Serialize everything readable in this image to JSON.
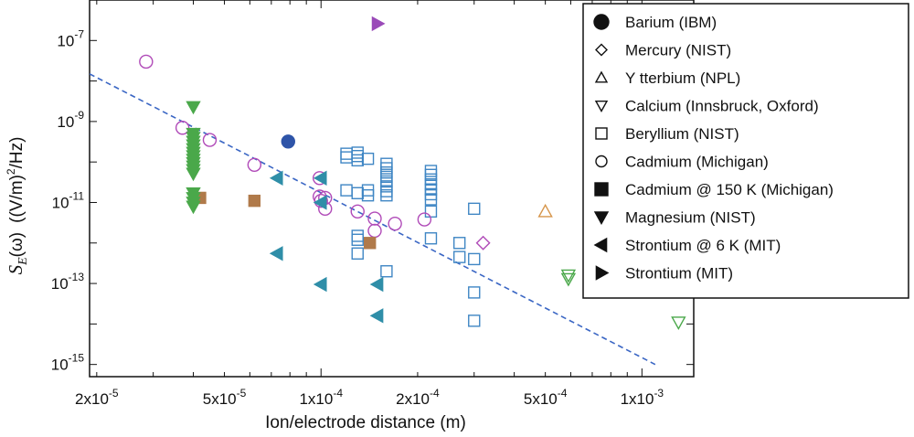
{
  "chart_data": {
    "type": "scatter",
    "title": "",
    "xlabel": "Ion/electrode distance (m)",
    "ylabel": "S_E(ω) ((V/m)²/Hz)",
    "ylabel_parts": {
      "s": "S",
      "sub": "E",
      "omega": "(ω)",
      "units_a": "((V/m)",
      "units_sup": "2",
      "units_b": "/Hz)"
    },
    "x_scale": "log",
    "y_scale": "log",
    "xlim": [
      1.9e-05,
      0.00145
    ],
    "ylim": [
      5e-16,
      1e-06
    ],
    "x_ticks": [
      {
        "value": 2e-05,
        "mant": "2x10",
        "exp": "-5"
      },
      {
        "value": 5e-05,
        "mant": "5x10",
        "exp": "-5"
      },
      {
        "value": 0.0001,
        "mant": "1x10",
        "exp": "-4"
      },
      {
        "value": 0.0002,
        "mant": "2x10",
        "exp": "-4"
      },
      {
        "value": 0.0005,
        "mant": "5x10",
        "exp": "-4"
      },
      {
        "value": 0.001,
        "mant": "1x10",
        "exp": "-3"
      }
    ],
    "y_ticks": [
      {
        "value": 1e-07,
        "mant": "10",
        "exp": "-7"
      },
      {
        "value": 1e-09,
        "mant": "10",
        "exp": "-9"
      },
      {
        "value": 1e-11,
        "mant": "10",
        "exp": "-11"
      },
      {
        "value": 1e-13,
        "mant": "10",
        "exp": "-13"
      },
      {
        "value": 1e-15,
        "mant": "10",
        "exp": "-15"
      }
    ],
    "legend_position": "top-right",
    "fit_line": {
      "style": "dashed",
      "color": "#3a66c4",
      "points": [
        [
          1.9e-05,
          1.5e-08
        ],
        [
          0.0011,
          1e-15
        ]
      ]
    },
    "series": [
      {
        "name": "Barium (IBM)",
        "marker": "circle-filled",
        "color": "#2e54a8",
        "points": [
          [
            7.9e-05,
            3.2e-10
          ]
        ]
      },
      {
        "name": "Mercury (NIST)",
        "marker": "diamond-open",
        "color": "#b04ab8",
        "points": [
          [
            0.00032,
            1e-12
          ]
        ]
      },
      {
        "name": "Y tterbium (NPL)",
        "marker": "triangle-up-open",
        "color": "#d6954a",
        "points": [
          [
            0.0005,
            6e-12
          ]
        ]
      },
      {
        "name": "Calcium (Innsbruck, Oxford)",
        "marker": "triangle-down-open",
        "color": "#4aa84a",
        "points": [
          [
            0.00059,
            1.6e-13
          ],
          [
            0.00059,
            1.3e-13
          ],
          [
            0.0013,
            1.1e-14
          ]
        ]
      },
      {
        "name": "Beryllium (NIST)",
        "marker": "square-open",
        "color": "#3f86c4",
        "points": [
          [
            0.00012,
            1.6e-10
          ],
          [
            0.00012,
            1.3e-10
          ],
          [
            0.00013,
            1.7e-10
          ],
          [
            0.00013,
            1.4e-10
          ],
          [
            0.00013,
            1.1e-10
          ],
          [
            0.00012,
            2e-11
          ],
          [
            0.00013,
            1.7e-11
          ],
          [
            0.00014,
            2e-11
          ],
          [
            0.00014,
            1.5e-11
          ],
          [
            0.00014,
            1.2e-10
          ],
          [
            0.00013,
            1.5e-12
          ],
          [
            0.00013,
            1.2e-12
          ],
          [
            0.00013,
            5.5e-13
          ],
          [
            0.00016,
            9e-11
          ],
          [
            0.00016,
            7e-11
          ],
          [
            0.00016,
            5.5e-11
          ],
          [
            0.00016,
            4.3e-11
          ],
          [
            0.00016,
            3.3e-11
          ],
          [
            0.00016,
            2.5e-11
          ],
          [
            0.00016,
            1.9e-11
          ],
          [
            0.00016,
            1.5e-11
          ],
          [
            0.00016,
            2e-13
          ],
          [
            0.00022,
            6e-11
          ],
          [
            0.00022,
            4.8e-11
          ],
          [
            0.00022,
            3.7e-11
          ],
          [
            0.00022,
            2.8e-11
          ],
          [
            0.00022,
            2.1e-11
          ],
          [
            0.00022,
            1.6e-11
          ],
          [
            0.00022,
            1.2e-11
          ],
          [
            0.00022,
            6e-12
          ],
          [
            0.00022,
            1.3e-12
          ],
          [
            0.00027,
            1e-12
          ],
          [
            0.00027,
            4.5e-13
          ],
          [
            0.0003,
            7e-12
          ],
          [
            0.0003,
            4e-13
          ],
          [
            0.0003,
            6e-14
          ],
          [
            0.0003,
            1.2e-14
          ]
        ]
      },
      {
        "name": "Cadmium (Michigan)",
        "marker": "circle-open",
        "color": "#b04ab8",
        "points": [
          [
            2.85e-05,
            3e-08
          ],
          [
            3.7e-05,
            7e-10
          ],
          [
            4.5e-05,
            3.5e-10
          ],
          [
            6.2e-05,
            8.5e-11
          ],
          [
            9.9e-05,
            4e-11
          ],
          [
            9.9e-05,
            1.4e-11
          ],
          [
            0.0001,
            1.1e-11
          ],
          [
            0.000103,
            1.3e-11
          ],
          [
            0.000103,
            7e-12
          ],
          [
            0.00013,
            6e-12
          ],
          [
            0.000147,
            4e-12
          ],
          [
            0.000147,
            2e-12
          ],
          [
            0.00017,
            3e-12
          ],
          [
            0.00021,
            3.8e-12
          ]
        ]
      },
      {
        "name": "Cadmium @ 150 K (Michigan)",
        "marker": "square-filled",
        "color": "#b07a4a",
        "points": [
          [
            4.2e-05,
            1.3e-11
          ],
          [
            6.2e-05,
            1.1e-11
          ],
          [
            0.000142,
            1e-12
          ]
        ]
      },
      {
        "name": "Magnesium (NIST)",
        "marker": "triangle-down-filled",
        "color": "#4aa84a",
        "points": [
          [
            4e-05,
            2.3e-09
          ],
          [
            4e-05,
            5e-10
          ],
          [
            4e-05,
            4e-10
          ],
          [
            4e-05,
            3.2e-10
          ],
          [
            4e-05,
            2.6e-10
          ],
          [
            4e-05,
            2.1e-10
          ],
          [
            4e-05,
            1.7e-10
          ],
          [
            4e-05,
            1.4e-10
          ],
          [
            4e-05,
            1.15e-10
          ],
          [
            4e-05,
            9.5e-11
          ],
          [
            4e-05,
            7.8e-11
          ],
          [
            4e-05,
            6.4e-11
          ],
          [
            4e-05,
            5.2e-11
          ],
          [
            4e-05,
            1.7e-11
          ],
          [
            4e-05,
            1.3e-11
          ],
          [
            4e-05,
            1e-11
          ],
          [
            4e-05,
            8e-12
          ]
        ]
      },
      {
        "name": "Strontium @ 6 K (MIT)",
        "marker": "triangle-left-filled",
        "color": "#2f8ea8",
        "points": [
          [
            7.3e-05,
            4e-11
          ],
          [
            0.0001,
            4e-11
          ],
          [
            0.0001,
            1e-11
          ],
          [
            7.3e-05,
            5.5e-13
          ],
          [
            0.0001,
            9.5e-14
          ],
          [
            0.00015,
            9.5e-14
          ],
          [
            0.00015,
            1.6e-14
          ]
        ]
      },
      {
        "name": "Strontium (MIT)",
        "marker": "triangle-right-filled",
        "color": "#9a4ab8",
        "points": [
          [
            0.00015,
            2.6e-07
          ]
        ]
      }
    ]
  }
}
